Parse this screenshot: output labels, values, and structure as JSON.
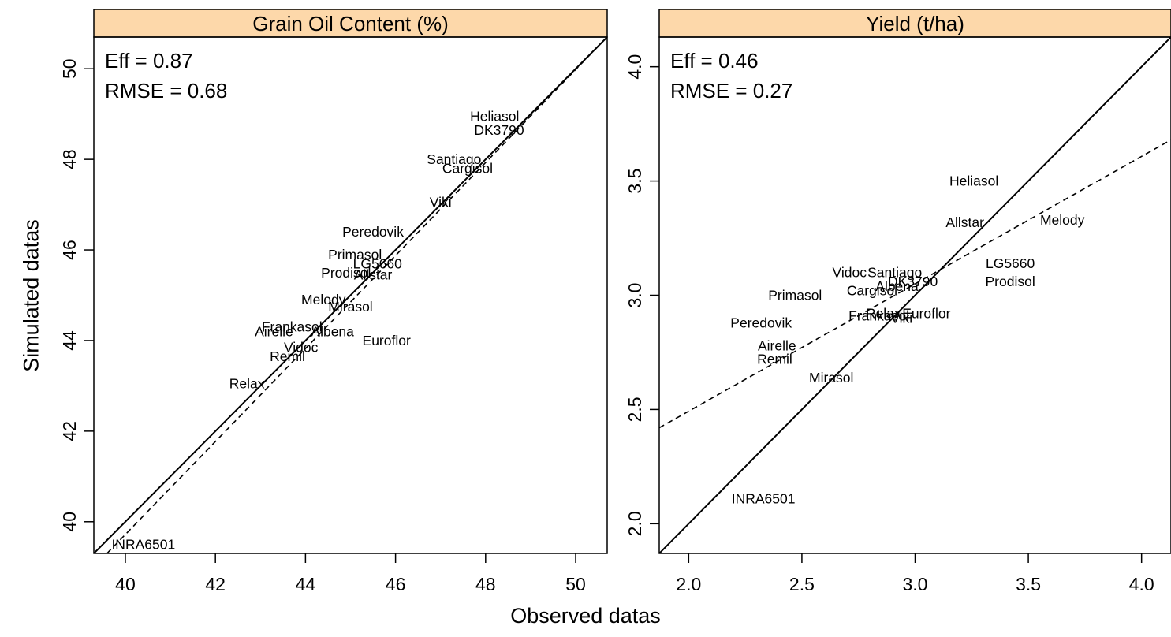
{
  "xlabel": "Observed datas",
  "ylabel": "Simulated datas",
  "colors": {
    "strip": "#fdd8aa",
    "ink": "#000000",
    "background": "#ffffff"
  },
  "chart_data": [
    {
      "type": "scatter",
      "title": "Grain Oil Content (%)",
      "stats": [
        "Eff = 0.87",
        "RMSE = 0.68"
      ],
      "xlim": [
        39.3,
        50.7
      ],
      "ylim": [
        39.3,
        50.7
      ],
      "xticks": [
        40,
        42,
        44,
        46,
        48,
        50
      ],
      "yticks": [
        40,
        42,
        44,
        46,
        48,
        50
      ],
      "identity_line": "solid",
      "regression_line": {
        "style": "dashed",
        "points": [
          [
            39.3,
            39.0
          ],
          [
            50.7,
            50.7
          ]
        ]
      },
      "points": [
        {
          "label": "Heliasol",
          "x": 48.2,
          "y": 48.95
        },
        {
          "label": "DK3790",
          "x": 48.3,
          "y": 48.65
        },
        {
          "label": "Santiago",
          "x": 47.3,
          "y": 48.0
        },
        {
          "label": "Cargisol",
          "x": 47.6,
          "y": 47.8
        },
        {
          "label": "Viki",
          "x": 47.0,
          "y": 47.05
        },
        {
          "label": "Peredovik",
          "x": 45.5,
          "y": 46.4
        },
        {
          "label": "Primasol",
          "x": 45.1,
          "y": 45.9
        },
        {
          "label": "LG5660",
          "x": 45.6,
          "y": 45.7
        },
        {
          "label": "Prodisol",
          "x": 44.9,
          "y": 45.5
        },
        {
          "label": "Allstar",
          "x": 45.5,
          "y": 45.45
        },
        {
          "label": "Melody",
          "x": 44.4,
          "y": 44.9
        },
        {
          "label": "Mirasol",
          "x": 45.0,
          "y": 44.75
        },
        {
          "label": "Frankasol",
          "x": 43.7,
          "y": 44.3
        },
        {
          "label": "Airelle",
          "x": 43.3,
          "y": 44.2
        },
        {
          "label": "Albena",
          "x": 44.6,
          "y": 44.2
        },
        {
          "label": "Euroflor",
          "x": 45.8,
          "y": 44.0
        },
        {
          "label": "Vidoc",
          "x": 43.9,
          "y": 43.85
        },
        {
          "label": "Remil",
          "x": 43.6,
          "y": 43.65
        },
        {
          "label": "Relax",
          "x": 42.7,
          "y": 43.05
        },
        {
          "label": "INRA6501",
          "x": 40.4,
          "y": 39.5
        }
      ]
    },
    {
      "type": "scatter",
      "title": "Yield (t/ha)",
      "stats": [
        "Eff = 0.46",
        "RMSE = 0.27"
      ],
      "xlim": [
        1.87,
        4.13
      ],
      "ylim": [
        1.87,
        4.13
      ],
      "xticks": [
        "2.0",
        "2.5",
        "3.0",
        "3.5",
        "4.0"
      ],
      "yticks": [
        "2.0",
        "2.5",
        "3.0",
        "3.5",
        "4.0"
      ],
      "identity_line": "solid",
      "regression_line": {
        "style": "dashed",
        "points": [
          [
            1.87,
            2.42
          ],
          [
            4.13,
            3.68
          ]
        ]
      },
      "points": [
        {
          "label": "Heliasol",
          "x": 3.26,
          "y": 3.5
        },
        {
          "label": "Allstar",
          "x": 3.22,
          "y": 3.32
        },
        {
          "label": "Melody",
          "x": 3.65,
          "y": 3.33
        },
        {
          "label": "LG5660",
          "x": 3.42,
          "y": 3.14
        },
        {
          "label": "Prodisol",
          "x": 3.42,
          "y": 3.06
        },
        {
          "label": "Vidoc",
          "x": 2.71,
          "y": 3.1
        },
        {
          "label": "Santiago",
          "x": 2.91,
          "y": 3.1
        },
        {
          "label": "DK3790",
          "x": 2.99,
          "y": 3.06
        },
        {
          "label": "Albena",
          "x": 2.92,
          "y": 3.04
        },
        {
          "label": "Cargisol",
          "x": 2.81,
          "y": 3.02
        },
        {
          "label": "Primasol",
          "x": 2.47,
          "y": 3.0
        },
        {
          "label": "Relax",
          "x": 2.86,
          "y": 2.92
        },
        {
          "label": "Euroflor",
          "x": 3.05,
          "y": 2.92
        },
        {
          "label": "Frankasol",
          "x": 2.84,
          "y": 2.91
        },
        {
          "label": "Viki",
          "x": 2.94,
          "y": 2.9
        },
        {
          "label": "Peredovik",
          "x": 2.32,
          "y": 2.88
        },
        {
          "label": "Airelle",
          "x": 2.39,
          "y": 2.78
        },
        {
          "label": "Remil",
          "x": 2.38,
          "y": 2.72
        },
        {
          "label": "Mirasol",
          "x": 2.63,
          "y": 2.64
        },
        {
          "label": "INRA6501",
          "x": 2.33,
          "y": 2.11
        }
      ]
    }
  ]
}
